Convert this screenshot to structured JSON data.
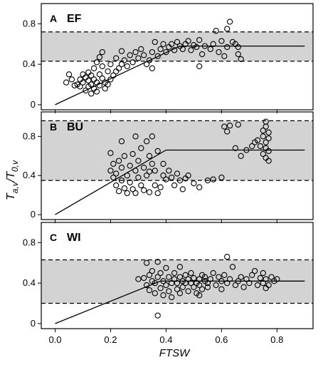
{
  "chart_data": {
    "type": "scatter",
    "xlabel": "FTSW",
    "ylabel_main": "T",
    "ylabel_sub": "a,v",
    "ylabel_slash": "/",
    "ylabel_main2": "T",
    "ylabel_sub2": "0,v",
    "xlim": [
      -0.05,
      0.93
    ],
    "x_ticks": [
      0.0,
      0.2,
      0.4,
      0.6,
      0.8
    ],
    "x_tick_labels": [
      "0.0",
      "0.2",
      "0.4",
      "0.6",
      "0.8"
    ],
    "panels": [
      {
        "letter": "A",
        "name": "EF",
        "ylim": [
          -0.05,
          1.0
        ],
        "y_ticks": [
          0,
          0.4,
          0.8
        ],
        "y_tick_labels": [
          "0",
          "0.4",
          "0.8"
        ],
        "band": [
          0.43,
          0.72
        ],
        "fit_line": {
          "x": [
            0.0,
            0.45,
            0.9
          ],
          "y": [
            0.0,
            0.58,
            0.58
          ]
        },
        "points": [
          [
            0.04,
            0.22
          ],
          [
            0.05,
            0.3
          ],
          [
            0.06,
            0.25
          ],
          [
            0.07,
            0.19
          ],
          [
            0.08,
            0.2
          ],
          [
            0.09,
            0.25
          ],
          [
            0.09,
            0.18
          ],
          [
            0.1,
            0.3
          ],
          [
            0.1,
            0.22
          ],
          [
            0.11,
            0.14
          ],
          [
            0.11,
            0.27
          ],
          [
            0.12,
            0.18
          ],
          [
            0.12,
            0.32
          ],
          [
            0.12,
            0.24
          ],
          [
            0.13,
            0.11
          ],
          [
            0.13,
            0.2
          ],
          [
            0.13,
            0.29
          ],
          [
            0.14,
            0.16
          ],
          [
            0.14,
            0.36
          ],
          [
            0.14,
            0.25
          ],
          [
            0.15,
            0.42
          ],
          [
            0.15,
            0.22
          ],
          [
            0.15,
            0.13
          ],
          [
            0.16,
            0.3
          ],
          [
            0.16,
            0.47
          ],
          [
            0.16,
            0.19
          ],
          [
            0.17,
            0.52
          ],
          [
            0.17,
            0.26
          ],
          [
            0.17,
            0.38
          ],
          [
            0.18,
            0.16
          ],
          [
            0.18,
            0.22
          ],
          [
            0.19,
            0.33
          ],
          [
            0.19,
            0.2
          ],
          [
            0.2,
            0.25
          ],
          [
            0.2,
            0.4
          ],
          [
            0.21,
            0.29
          ],
          [
            0.22,
            0.33
          ],
          [
            0.22,
            0.46
          ],
          [
            0.23,
            0.36
          ],
          [
            0.24,
            0.4
          ],
          [
            0.24,
            0.53
          ],
          [
            0.25,
            0.44
          ],
          [
            0.26,
            0.38
          ],
          [
            0.27,
            0.49
          ],
          [
            0.28,
            0.42
          ],
          [
            0.29,
            0.52
          ],
          [
            0.3,
            0.46
          ],
          [
            0.31,
            0.55
          ],
          [
            0.32,
            0.49
          ],
          [
            0.33,
            0.4
          ],
          [
            0.34,
            0.44
          ],
          [
            0.35,
            0.52
          ],
          [
            0.36,
            0.62
          ],
          [
            0.37,
            0.48
          ],
          [
            0.38,
            0.55
          ],
          [
            0.39,
            0.6
          ],
          [
            0.4,
            0.52
          ],
          [
            0.41,
            0.57
          ],
          [
            0.42,
            0.6
          ],
          [
            0.43,
            0.54
          ],
          [
            0.44,
            0.62
          ],
          [
            0.45,
            0.58
          ],
          [
            0.46,
            0.55
          ],
          [
            0.47,
            0.6
          ],
          [
            0.48,
            0.63
          ],
          [
            0.49,
            0.54
          ],
          [
            0.5,
            0.59
          ],
          [
            0.51,
            0.57
          ],
          [
            0.52,
            0.64
          ],
          [
            0.53,
            0.5
          ],
          [
            0.54,
            0.58
          ],
          [
            0.56,
            0.55
          ],
          [
            0.57,
            0.6
          ],
          [
            0.58,
            0.73
          ],
          [
            0.59,
            0.52
          ],
          [
            0.6,
            0.63
          ],
          [
            0.61,
            0.48
          ],
          [
            0.62,
            0.57
          ],
          [
            0.62,
            0.75
          ],
          [
            0.63,
            0.82
          ],
          [
            0.64,
            0.62
          ],
          [
            0.65,
            0.6
          ],
          [
            0.66,
            0.5
          ],
          [
            0.66,
            0.57
          ],
          [
            0.67,
            0.45
          ],
          [
            0.52,
            0.38
          ],
          [
            0.35,
            0.36
          ]
        ]
      },
      {
        "letter": "B",
        "name": "BU",
        "ylim": [
          -0.05,
          1.05
        ],
        "y_ticks": [
          0,
          0.4,
          0.8
        ],
        "y_tick_labels": [
          "0",
          "0.4",
          "0.8"
        ],
        "band": [
          0.35,
          0.96
        ],
        "fit_line": {
          "x": [
            0.0,
            0.4,
            0.9
          ],
          "y": [
            0.0,
            0.66,
            0.66
          ]
        },
        "points": [
          [
            0.2,
            0.45
          ],
          [
            0.2,
            0.63
          ],
          [
            0.21,
            0.52
          ],
          [
            0.21,
            0.38
          ],
          [
            0.22,
            0.3
          ],
          [
            0.22,
            0.42
          ],
          [
            0.23,
            0.24
          ],
          [
            0.23,
            0.55
          ],
          [
            0.24,
            0.35
          ],
          [
            0.24,
            0.48
          ],
          [
            0.25,
            0.27
          ],
          [
            0.25,
            0.6
          ],
          [
            0.26,
            0.4
          ],
          [
            0.26,
            0.22
          ],
          [
            0.27,
            0.5
          ],
          [
            0.27,
            0.33
          ],
          [
            0.28,
            0.26
          ],
          [
            0.28,
            0.62
          ],
          [
            0.29,
            0.45
          ],
          [
            0.29,
            0.22
          ],
          [
            0.3,
            0.38
          ],
          [
            0.3,
            0.55
          ],
          [
            0.31,
            0.3
          ],
          [
            0.31,
            0.68
          ],
          [
            0.32,
            0.48
          ],
          [
            0.32,
            0.25
          ],
          [
            0.33,
            0.75
          ],
          [
            0.33,
            0.4
          ],
          [
            0.34,
            0.6
          ],
          [
            0.34,
            0.23
          ],
          [
            0.35,
            0.52
          ],
          [
            0.35,
            0.8
          ],
          [
            0.36,
            0.45
          ],
          [
            0.36,
            0.3
          ],
          [
            0.37,
            0.65
          ],
          [
            0.37,
            0.22
          ],
          [
            0.38,
            0.28
          ],
          [
            0.39,
            0.4
          ],
          [
            0.4,
            0.36
          ],
          [
            0.41,
            0.45
          ],
          [
            0.42,
            0.38
          ],
          [
            0.43,
            0.3
          ],
          [
            0.44,
            0.42
          ],
          [
            0.45,
            0.35
          ],
          [
            0.46,
            0.26
          ],
          [
            0.47,
            0.37
          ],
          [
            0.48,
            0.4
          ],
          [
            0.5,
            0.32
          ],
          [
            0.52,
            0.28
          ],
          [
            0.55,
            0.35
          ],
          [
            0.57,
            0.36
          ],
          [
            0.6,
            0.38
          ],
          [
            0.61,
            0.9
          ],
          [
            0.62,
            0.85
          ],
          [
            0.63,
            0.91
          ],
          [
            0.65,
            0.68
          ],
          [
            0.66,
            0.92
          ],
          [
            0.67,
            0.6
          ],
          [
            0.69,
            0.66
          ],
          [
            0.71,
            0.7
          ],
          [
            0.72,
            0.74
          ],
          [
            0.73,
            0.76
          ],
          [
            0.74,
            0.7
          ],
          [
            0.75,
            0.62
          ],
          [
            0.75,
            0.8
          ],
          [
            0.75,
            0.86
          ],
          [
            0.76,
            0.68
          ],
          [
            0.76,
            0.74
          ],
          [
            0.76,
            0.58
          ],
          [
            0.76,
            0.9
          ],
          [
            0.77,
            0.78
          ],
          [
            0.77,
            0.84
          ],
          [
            0.77,
            0.65
          ],
          [
            0.77,
            0.55
          ],
          [
            0.76,
            0.95
          ],
          [
            0.24,
            0.75
          ],
          [
            0.29,
            0.8
          ],
          [
            0.34,
            0.44
          ],
          [
            0.39,
            0.52
          ]
        ]
      },
      {
        "letter": "C",
        "name": "WI",
        "ylim": [
          -0.05,
          1.0
        ],
        "y_ticks": [
          0,
          0.4,
          0.8
        ],
        "y_tick_labels": [
          "0",
          "0.4",
          "0.8"
        ],
        "band": [
          0.2,
          0.63
        ],
        "fit_line": {
          "x": [
            0.0,
            0.38,
            0.9
          ],
          "y": [
            0.0,
            0.42,
            0.42
          ]
        },
        "points": [
          [
            0.32,
            0.45
          ],
          [
            0.33,
            0.38
          ],
          [
            0.33,
            0.6
          ],
          [
            0.34,
            0.48
          ],
          [
            0.34,
            0.33
          ],
          [
            0.35,
            0.42
          ],
          [
            0.35,
            0.52
          ],
          [
            0.36,
            0.3
          ],
          [
            0.36,
            0.4
          ],
          [
            0.37,
            0.46
          ],
          [
            0.37,
            0.61
          ],
          [
            0.38,
            0.35
          ],
          [
            0.38,
            0.5
          ],
          [
            0.39,
            0.28
          ],
          [
            0.39,
            0.42
          ],
          [
            0.4,
            0.38
          ],
          [
            0.4,
            0.55
          ],
          [
            0.41,
            0.32
          ],
          [
            0.41,
            0.46
          ],
          [
            0.42,
            0.4
          ],
          [
            0.42,
            0.26
          ],
          [
            0.43,
            0.44
          ],
          [
            0.43,
            0.5
          ],
          [
            0.44,
            0.34
          ],
          [
            0.44,
            0.4
          ],
          [
            0.45,
            0.46
          ],
          [
            0.45,
            0.3
          ],
          [
            0.46,
            0.42
          ],
          [
            0.46,
            0.36
          ],
          [
            0.47,
            0.48
          ],
          [
            0.47,
            0.4
          ],
          [
            0.48,
            0.44
          ],
          [
            0.48,
            0.32
          ],
          [
            0.49,
            0.4
          ],
          [
            0.49,
            0.5
          ],
          [
            0.5,
            0.36
          ],
          [
            0.5,
            0.45
          ],
          [
            0.51,
            0.4
          ],
          [
            0.51,
            0.3
          ],
          [
            0.52,
            0.44
          ],
          [
            0.52,
            0.38
          ],
          [
            0.53,
            0.48
          ],
          [
            0.53,
            0.34
          ],
          [
            0.54,
            0.42
          ],
          [
            0.54,
            0.46
          ],
          [
            0.55,
            0.36
          ],
          [
            0.55,
            0.4
          ],
          [
            0.56,
            0.44
          ],
          [
            0.57,
            0.5
          ],
          [
            0.58,
            0.38
          ],
          [
            0.59,
            0.46
          ],
          [
            0.6,
            0.42
          ],
          [
            0.6,
            0.34
          ],
          [
            0.61,
            0.48
          ],
          [
            0.62,
            0.66
          ],
          [
            0.62,
            0.4
          ],
          [
            0.63,
            0.44
          ],
          [
            0.64,
            0.56
          ],
          [
            0.65,
            0.38
          ],
          [
            0.66,
            0.42
          ],
          [
            0.67,
            0.46
          ],
          [
            0.68,
            0.36
          ],
          [
            0.69,
            0.44
          ],
          [
            0.7,
            0.4
          ],
          [
            0.71,
            0.48
          ],
          [
            0.72,
            0.52
          ],
          [
            0.73,
            0.38
          ],
          [
            0.74,
            0.45
          ],
          [
            0.75,
            0.5
          ],
          [
            0.75,
            0.4
          ],
          [
            0.76,
            0.44
          ],
          [
            0.77,
            0.38
          ],
          [
            0.78,
            0.46
          ],
          [
            0.79,
            0.42
          ],
          [
            0.8,
            0.44
          ],
          [
            0.76,
            0.35
          ],
          [
            0.37,
            0.08
          ],
          [
            0.45,
            0.56
          ],
          [
            0.52,
            0.28
          ],
          [
            0.3,
            0.44
          ]
        ]
      }
    ]
  }
}
